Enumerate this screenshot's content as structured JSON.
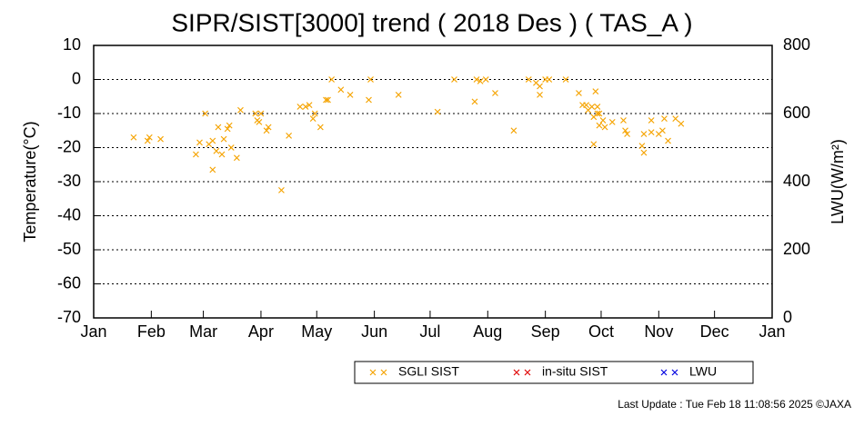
{
  "chart_data": {
    "type": "scatter",
    "title": "SIPR/SIST[3000] trend ( 2018 Des ) ( TAS_A )",
    "y_label": "Temperature(°C)",
    "y2_label": "LWU(W/m²)",
    "footer": "Last Update : Tue Feb 18 11:08:56 2025 ©JAXA",
    "xlim": [
      0,
      365
    ],
    "xticks": [
      {
        "value": 0,
        "label": "Jan"
      },
      {
        "value": 31,
        "label": "Feb"
      },
      {
        "value": 59,
        "label": "Mar"
      },
      {
        "value": 90,
        "label": "Apr"
      },
      {
        "value": 120,
        "label": "May"
      },
      {
        "value": 151,
        "label": "Jun"
      },
      {
        "value": 181,
        "label": "Jul"
      },
      {
        "value": 212,
        "label": "Aug"
      },
      {
        "value": 243,
        "label": "Sep"
      },
      {
        "value": 273,
        "label": "Oct"
      },
      {
        "value": 304,
        "label": "Nov"
      },
      {
        "value": 334,
        "label": "Dec"
      },
      {
        "value": 365,
        "label": "Jan"
      }
    ],
    "ylim": [
      -70,
      10
    ],
    "yticks": [
      -70,
      -60,
      -50,
      -40,
      -30,
      -20,
      -10,
      0,
      10
    ],
    "y2lim": [
      0,
      800
    ],
    "y2ticks": [
      0,
      200,
      400,
      600,
      800
    ],
    "grid": true,
    "series": [
      {
        "name": "SGLI SIST",
        "color": "#f5a300",
        "x": [
          21.5,
          29,
          30,
          36,
          55,
          57,
          60,
          62,
          64,
          64,
          66,
          67,
          69,
          70,
          72,
          73,
          74,
          77,
          79,
          87,
          88,
          89,
          90,
          93,
          94,
          101,
          105,
          111,
          114,
          116,
          118,
          119,
          122,
          125,
          126,
          128,
          133,
          138,
          148,
          149,
          164,
          185,
          194,
          205,
          206,
          208,
          211,
          216,
          226,
          234,
          238,
          240,
          240,
          243,
          245,
          254,
          261,
          263,
          265,
          266,
          268,
          269,
          271,
          271,
          274,
          275,
          269,
          270,
          272,
          272,
          279,
          285,
          286,
          287,
          295,
          296,
          296,
          300,
          300,
          304,
          306,
          307,
          309,
          313,
          316
        ],
        "values": [
          -17,
          -18,
          -17,
          -17.5,
          -22,
          -18.5,
          -10,
          -19,
          -18,
          -26.5,
          -21,
          -14,
          -22,
          -17.5,
          -14.5,
          -13.5,
          -20,
          -23,
          -9,
          -10,
          -12,
          -12.5,
          -10,
          -15,
          -14,
          -32.5,
          -16.5,
          -8,
          -8,
          -7.5,
          -11.5,
          -10,
          -14,
          -6,
          -6,
          0,
          -3,
          -4.5,
          -6,
          0,
          -4.5,
          -9.5,
          0,
          -6.5,
          0,
          -0.5,
          0,
          -4,
          -15,
          0,
          -1,
          -2,
          -4.5,
          0,
          0,
          0,
          -4,
          -7.5,
          -7.5,
          -9,
          -8,
          -11,
          -8,
          -10,
          -12,
          -14,
          -19,
          -3.5,
          -10,
          -13.5,
          -12.5,
          -12,
          -15,
          -16,
          -19.5,
          -21.5,
          -16,
          -12,
          -15.5,
          -16,
          -15,
          -11.5,
          -18,
          -11.5,
          -13
        ]
      },
      {
        "name": "in-situ SIST",
        "color": "#e00000",
        "x": [],
        "values": []
      },
      {
        "name": "LWU",
        "color": "#0000e0",
        "axis": "y2",
        "x": [],
        "values": []
      }
    ]
  }
}
